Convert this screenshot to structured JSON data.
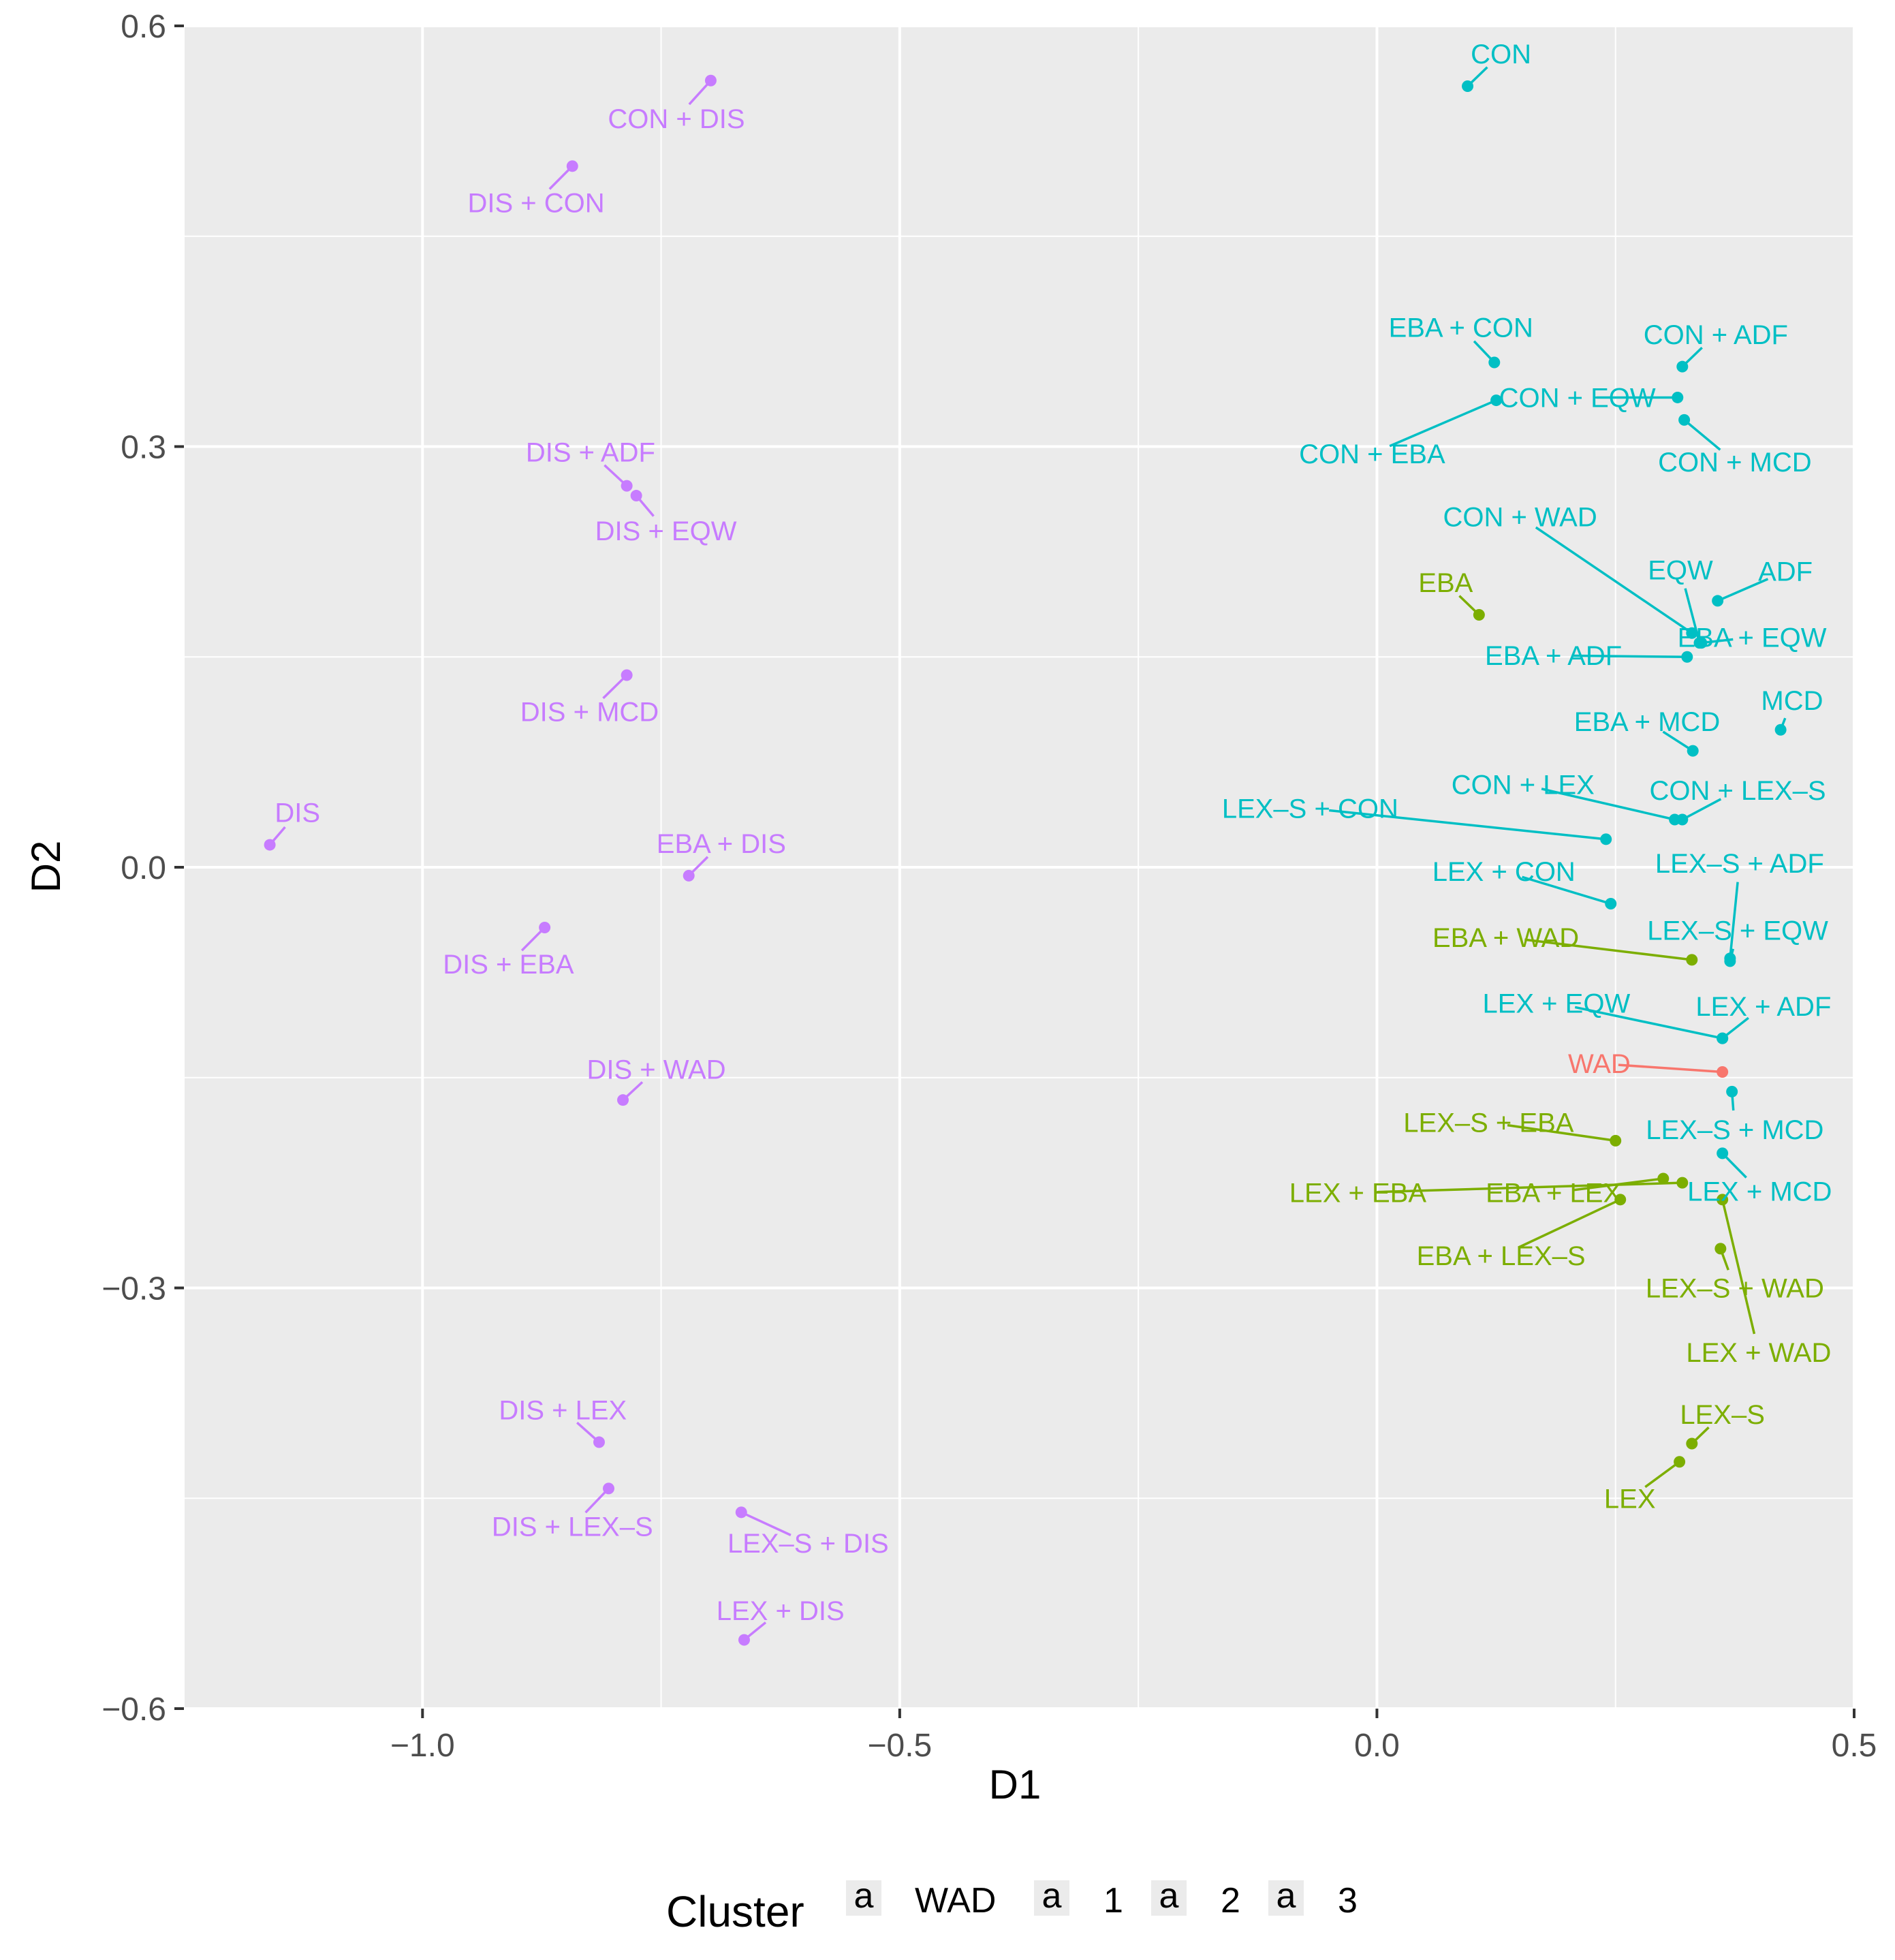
{
  "chart_data": {
    "type": "scatter",
    "xlabel": "D1",
    "ylabel": "D2",
    "xlim": [
      -1.25,
      0.5
    ],
    "ylim": [
      -0.6,
      0.6
    ],
    "xticks": [
      {
        "value": -1.0,
        "label": "−1.0"
      },
      {
        "value": -0.5,
        "label": "−0.5"
      },
      {
        "value": 0.0,
        "label": "0.0"
      },
      {
        "value": 0.5,
        "label": "0.5"
      }
    ],
    "yticks": [
      {
        "value": 0.6,
        "label": "0.6"
      },
      {
        "value": 0.3,
        "label": "0.3"
      },
      {
        "value": 0.0,
        "label": "0.0"
      },
      {
        "value": -0.3,
        "label": "−0.3"
      },
      {
        "value": -0.6,
        "label": "−0.6"
      }
    ],
    "grid": true,
    "legend": {
      "title": "Cluster",
      "position": "bottom",
      "key_glyph": "a",
      "entries": [
        {
          "name": "WAD",
          "color": "#F8766D"
        },
        {
          "name": "1",
          "color": "#7CAE00"
        },
        {
          "name": "2",
          "color": "#00BFC4"
        },
        {
          "name": "3",
          "color": "#C77CFF"
        }
      ]
    },
    "points": [
      {
        "label": "CON",
        "x": 0.095,
        "y": 0.557,
        "lx": 0.13,
        "ly": 0.58,
        "cluster": "2"
      },
      {
        "label": "EBA + CON",
        "x": 0.123,
        "y": 0.36,
        "lx": 0.088,
        "ly": 0.385,
        "cluster": "2"
      },
      {
        "label": "CON + ADF",
        "x": 0.32,
        "y": 0.357,
        "lx": 0.355,
        "ly": 0.38,
        "cluster": "2"
      },
      {
        "label": "CON + EQW",
        "x": 0.315,
        "y": 0.335,
        "lx": 0.21,
        "ly": 0.335,
        "cluster": "2"
      },
      {
        "label": "CON + EBA",
        "x": 0.125,
        "y": 0.333,
        "lx": -0.005,
        "ly": 0.295,
        "cluster": "2"
      },
      {
        "label": "CON + MCD",
        "x": 0.322,
        "y": 0.319,
        "lx": 0.375,
        "ly": 0.289,
        "cluster": "2"
      },
      {
        "label": "CON + WAD",
        "x": 0.33,
        "y": 0.167,
        "lx": 0.15,
        "ly": 0.25,
        "cluster": "2"
      },
      {
        "label": "EQW",
        "x": 0.338,
        "y": 0.16,
        "lx": 0.318,
        "ly": 0.212,
        "cluster": "2"
      },
      {
        "label": "ADF",
        "x": 0.357,
        "y": 0.19,
        "lx": 0.428,
        "ly": 0.211,
        "cluster": "2"
      },
      {
        "label": "EBA + EQW",
        "x": 0.34,
        "y": 0.16,
        "lx": 0.393,
        "ly": 0.164,
        "cluster": "2"
      },
      {
        "label": "EBA + ADF",
        "x": 0.325,
        "y": 0.15,
        "lx": 0.185,
        "ly": 0.151,
        "cluster": "2"
      },
      {
        "label": "MCD",
        "x": 0.423,
        "y": 0.098,
        "lx": 0.435,
        "ly": 0.119,
        "cluster": "2"
      },
      {
        "label": "EBA + MCD",
        "x": 0.331,
        "y": 0.083,
        "lx": 0.283,
        "ly": 0.104,
        "cluster": "2"
      },
      {
        "label": "CON + LEX",
        "x": 0.312,
        "y": 0.034,
        "lx": 0.153,
        "ly": 0.059,
        "cluster": "2"
      },
      {
        "label": "CON + LEX–S",
        "x": 0.32,
        "y": 0.034,
        "lx": 0.378,
        "ly": 0.055,
        "cluster": "2"
      },
      {
        "label": "LEX–S + CON",
        "x": 0.24,
        "y": 0.02,
        "lx": -0.07,
        "ly": 0.042,
        "cluster": "2"
      },
      {
        "label": "LEX–S + ADF",
        "x": 0.37,
        "y": -0.065,
        "lx": 0.38,
        "ly": 0.003,
        "cluster": "2"
      },
      {
        "label": "LEX + CON",
        "x": 0.245,
        "y": -0.026,
        "lx": 0.133,
        "ly": -0.003,
        "cluster": "2"
      },
      {
        "label": "LEX–S + EQW",
        "x": 0.37,
        "y": -0.067,
        "lx": 0.378,
        "ly": -0.045,
        "cluster": "2"
      },
      {
        "label": "LEX + EQW",
        "x": 0.362,
        "y": -0.122,
        "lx": 0.188,
        "ly": -0.097,
        "cluster": "2"
      },
      {
        "label": "LEX + ADF",
        "x": 0.362,
        "y": -0.122,
        "lx": 0.405,
        "ly": -0.099,
        "cluster": "2"
      },
      {
        "label": "WAD",
        "x": 0.362,
        "y": -0.146,
        "lx": 0.233,
        "ly": -0.14,
        "cluster": "WAD"
      },
      {
        "label": "LEX–S + MCD",
        "x": 0.372,
        "y": -0.16,
        "lx": 0.375,
        "ly": -0.187,
        "cluster": "2"
      },
      {
        "label": "LEX + MCD",
        "x": 0.362,
        "y": -0.204,
        "lx": 0.401,
        "ly": -0.231,
        "cluster": "2"
      },
      {
        "label": "EBA + WAD",
        "x": 0.33,
        "y": -0.066,
        "lx": 0.135,
        "ly": -0.05,
        "cluster": "1"
      },
      {
        "label": "EBA",
        "x": 0.107,
        "y": 0.18,
        "lx": 0.072,
        "ly": 0.203,
        "cluster": "1"
      },
      {
        "label": "LEX–S + EBA",
        "x": 0.25,
        "y": -0.195,
        "lx": 0.117,
        "ly": -0.182,
        "cluster": "1"
      },
      {
        "label": "LEX + EBA",
        "x": 0.32,
        "y": -0.225,
        "lx": -0.02,
        "ly": -0.232,
        "cluster": "1"
      },
      {
        "label": "EBA + LEX",
        "x": 0.3,
        "y": -0.222,
        "lx": 0.185,
        "ly": -0.232,
        "cluster": "1"
      },
      {
        "label": "EBA + LEX–S",
        "x": 0.255,
        "y": -0.237,
        "lx": 0.13,
        "ly": -0.277,
        "cluster": "1"
      },
      {
        "label": "LEX–S + WAD",
        "x": 0.36,
        "y": -0.272,
        "lx": 0.375,
        "ly": -0.3,
        "cluster": "1"
      },
      {
        "label": "LEX + WAD",
        "x": 0.362,
        "y": -0.237,
        "lx": 0.4,
        "ly": -0.346,
        "cluster": "1"
      },
      {
        "label": "LEX–S",
        "x": 0.33,
        "y": -0.411,
        "lx": 0.362,
        "ly": -0.39,
        "cluster": "1"
      },
      {
        "label": "LEX",
        "x": 0.317,
        "y": -0.424,
        "lx": 0.265,
        "ly": -0.45,
        "cluster": "1"
      },
      {
        "label": "CON + DIS",
        "x": -0.698,
        "y": 0.561,
        "lx": -0.734,
        "ly": 0.534,
        "cluster": "3"
      },
      {
        "label": "DIS + CON",
        "x": -0.843,
        "y": 0.5,
        "lx": -0.881,
        "ly": 0.474,
        "cluster": "3"
      },
      {
        "label": "DIS + ADF",
        "x": -0.786,
        "y": 0.272,
        "lx": -0.824,
        "ly": 0.296,
        "cluster": "3"
      },
      {
        "label": "DIS + EQW",
        "x": -0.776,
        "y": 0.265,
        "lx": -0.745,
        "ly": 0.24,
        "cluster": "3"
      },
      {
        "label": "DIS + MCD",
        "x": -0.786,
        "y": 0.137,
        "lx": -0.825,
        "ly": 0.111,
        "cluster": "3"
      },
      {
        "label": "DIS",
        "x": -1.16,
        "y": 0.016,
        "lx": -1.131,
        "ly": 0.039,
        "cluster": "3"
      },
      {
        "label": "EBA + DIS",
        "x": -0.721,
        "y": -0.006,
        "lx": -0.687,
        "ly": 0.017,
        "cluster": "3"
      },
      {
        "label": "DIS + EBA",
        "x": -0.872,
        "y": -0.043,
        "lx": -0.91,
        "ly": -0.069,
        "cluster": "3"
      },
      {
        "label": "DIS + WAD",
        "x": -0.79,
        "y": -0.166,
        "lx": -0.755,
        "ly": -0.144,
        "cluster": "3"
      },
      {
        "label": "DIS + LEX",
        "x": -0.815,
        "y": -0.41,
        "lx": -0.853,
        "ly": -0.387,
        "cluster": "3"
      },
      {
        "label": "DIS + LEX–S",
        "x": -0.805,
        "y": -0.443,
        "lx": -0.843,
        "ly": -0.47,
        "cluster": "3"
      },
      {
        "label": "LEX–S + DIS",
        "x": -0.666,
        "y": -0.46,
        "lx": -0.596,
        "ly": -0.482,
        "cluster": "3"
      },
      {
        "label": "LEX + DIS",
        "x": -0.663,
        "y": -0.551,
        "lx": -0.625,
        "ly": -0.53,
        "cluster": "3"
      }
    ]
  }
}
